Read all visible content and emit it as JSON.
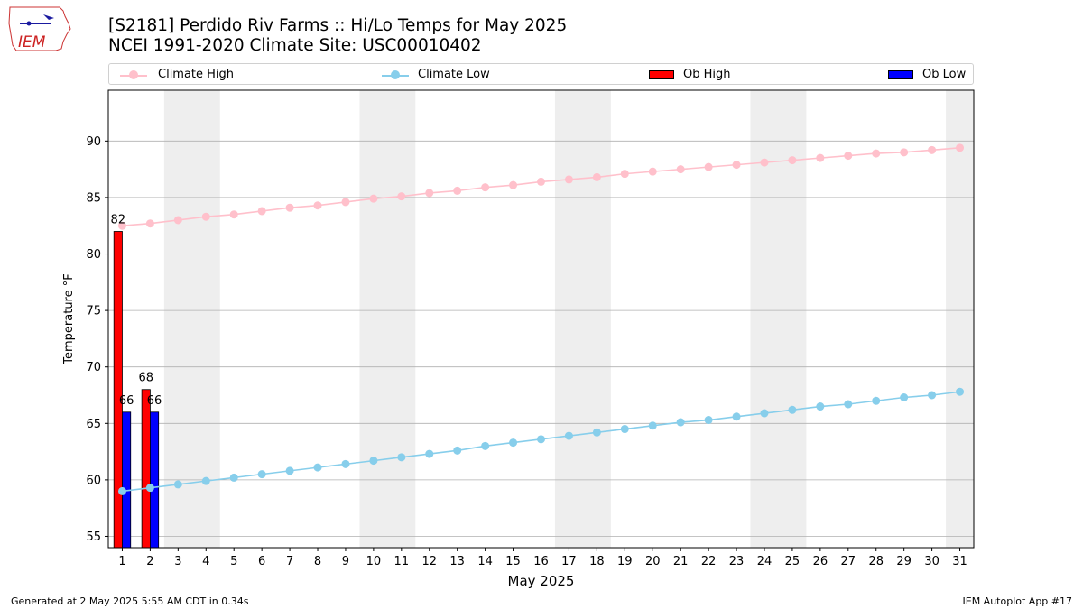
{
  "header": {
    "title_line1": "[S2181] Perdido Riv Farms :: Hi/Lo Temps for May 2025",
    "title_line2": "NCEI 1991-2020 Climate Site: USC00010402",
    "logo_text": "IEM"
  },
  "footer": {
    "generated": "Generated at 2 May 2025 5:55 AM CDT in 0.34s",
    "app": "IEM Autoplot App #17"
  },
  "legend": {
    "climate_high": "Climate High",
    "climate_low": "Climate Low",
    "ob_high": "Ob High",
    "ob_low": "Ob Low"
  },
  "chart_data": {
    "type": "bar",
    "xlabel": "May 2025",
    "ylabel": "Temperature °F",
    "ylim": [
      54,
      94.5
    ],
    "xlim": [
      0.5,
      31.5
    ],
    "yticks": [
      55,
      60,
      65,
      70,
      75,
      80,
      85,
      90
    ],
    "x": [
      1,
      2,
      3,
      4,
      5,
      6,
      7,
      8,
      9,
      10,
      11,
      12,
      13,
      14,
      15,
      16,
      17,
      18,
      19,
      20,
      21,
      22,
      23,
      24,
      25,
      26,
      27,
      28,
      29,
      30,
      31
    ],
    "weekend_spans": [
      [
        2.5,
        4.5
      ],
      [
        9.5,
        11.5
      ],
      [
        16.5,
        18.5
      ],
      [
        23.5,
        25.5
      ],
      [
        30.5,
        31.5
      ]
    ],
    "grid": "y",
    "legend_position": "top",
    "colors": {
      "climate_high": "#ffc0cb",
      "climate_low": "#87ceeb",
      "ob_high": "#ff0000",
      "ob_low": "#0000ff",
      "weekend": "#eeeeee",
      "grid": "#b0b0b0"
    },
    "series": [
      {
        "name": "Climate High",
        "type": "line",
        "values": [
          82.5,
          82.7,
          83.0,
          83.3,
          83.5,
          83.8,
          84.1,
          84.3,
          84.6,
          84.9,
          85.1,
          85.4,
          85.6,
          85.9,
          86.1,
          86.4,
          86.6,
          86.8,
          87.1,
          87.3,
          87.5,
          87.7,
          87.9,
          88.1,
          88.3,
          88.5,
          88.7,
          88.9,
          89.0,
          89.2,
          89.4
        ]
      },
      {
        "name": "Climate Low",
        "type": "line",
        "values": [
          59.0,
          59.3,
          59.6,
          59.9,
          60.2,
          60.5,
          60.8,
          61.1,
          61.4,
          61.7,
          62.0,
          62.3,
          62.6,
          63.0,
          63.3,
          63.6,
          63.9,
          64.2,
          64.5,
          64.8,
          65.1,
          65.3,
          65.6,
          65.9,
          66.2,
          66.5,
          66.7,
          67.0,
          67.3,
          67.5,
          67.8
        ]
      },
      {
        "name": "Ob High",
        "type": "bar",
        "x": [
          1,
          2
        ],
        "values": [
          82,
          68
        ],
        "labels": [
          "82",
          "68"
        ]
      },
      {
        "name": "Ob Low",
        "type": "bar",
        "x": [
          1,
          2
        ],
        "values": [
          66,
          66
        ],
        "labels": [
          "66",
          "66"
        ]
      }
    ]
  }
}
